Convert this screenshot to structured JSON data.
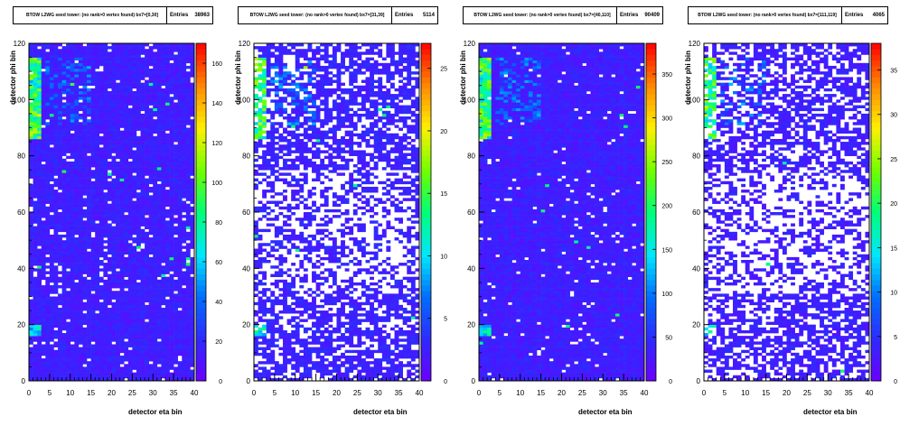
{
  "chart_data": [
    {
      "type": "heatmap",
      "title": "BTOW L2WG seed tower: (no rank>0 vertex found) bx7=[0,30]",
      "stats_label": "Entries",
      "entries": "38963",
      "xlabel": "detector eta bin",
      "ylabel": "detector phi bin",
      "xlim": [
        0,
        40
      ],
      "ylim": [
        0,
        120
      ],
      "x_ticks": [
        "0",
        "5",
        "10",
        "15",
        "20",
        "25",
        "30",
        "35",
        "40"
      ],
      "y_ticks": [
        "0",
        "20",
        "40",
        "60",
        "80",
        "100",
        "120"
      ],
      "z_ticks": [
        "0",
        "20",
        "40",
        "60",
        "80",
        "100",
        "120",
        "140",
        "160"
      ],
      "zmax": 170,
      "white_fraction": 0.05,
      "base_level": 0.05,
      "seed": 11
    },
    {
      "type": "heatmap",
      "title": "BTOW L2WG seed tower: (no rank>0 vertex found) bx7=[31,39]",
      "stats_label": "Entries",
      "entries": "5114",
      "xlabel": "detector eta bin",
      "ylabel": "detector phi bin",
      "xlim": [
        0,
        40
      ],
      "ylim": [
        0,
        120
      ],
      "x_ticks": [
        "0",
        "5",
        "10",
        "15",
        "20",
        "25",
        "30",
        "35",
        "40"
      ],
      "y_ticks": [
        "0",
        "20",
        "40",
        "60",
        "80",
        "100",
        "120"
      ],
      "z_ticks": [
        "0",
        "5",
        "10",
        "15",
        "20",
        "25"
      ],
      "zmax": 27,
      "white_fraction": 0.4,
      "base_level": 0.06,
      "seed": 23
    },
    {
      "type": "heatmap",
      "title": "BTOW L2WG seed tower: (no rank>0 vertex found) bx7=[40,110]",
      "stats_label": "Entries",
      "entries": "90409",
      "xlabel": "detector eta bin",
      "ylabel": "detector phi bin",
      "xlim": [
        0,
        40
      ],
      "ylim": [
        0,
        120
      ],
      "x_ticks": [
        "0",
        "5",
        "10",
        "15",
        "20",
        "25",
        "30",
        "35",
        "40"
      ],
      "y_ticks": [
        "0",
        "20",
        "40",
        "60",
        "80",
        "100",
        "120"
      ],
      "z_ticks": [
        "0",
        "50",
        "100",
        "150",
        "200",
        "250",
        "300",
        "350"
      ],
      "zmax": 385,
      "white_fraction": 0.03,
      "base_level": 0.05,
      "seed": 37
    },
    {
      "type": "heatmap",
      "title": "BTOW L2WG seed tower: (no rank>0 vertex found) bx7=[111,119]",
      "stats_label": "Entries",
      "entries": "4065",
      "xlabel": "detector eta bin",
      "ylabel": "detector phi bin",
      "xlim": [
        0,
        40
      ],
      "ylim": [
        0,
        120
      ],
      "x_ticks": [
        "0",
        "5",
        "10",
        "15",
        "20",
        "25",
        "30",
        "35",
        "40"
      ],
      "y_ticks": [
        "0",
        "20",
        "40",
        "60",
        "80",
        "100",
        "120"
      ],
      "z_ticks": [
        "0",
        "5",
        "10",
        "15",
        "20",
        "25",
        "30",
        "35"
      ],
      "zmax": 38,
      "white_fraction": 0.47,
      "base_level": 0.05,
      "seed": 53
    }
  ]
}
